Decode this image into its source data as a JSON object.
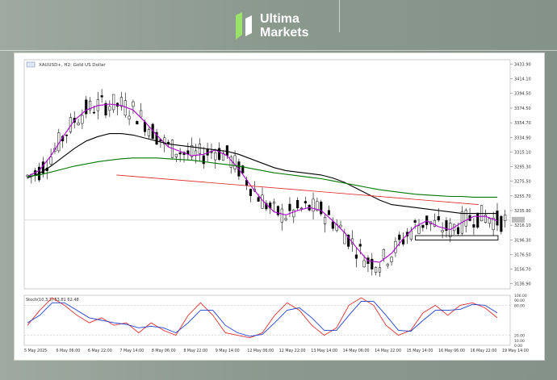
{
  "brand": {
    "line1": "Ultima",
    "line2": "Markets",
    "accent": "#9be26a"
  },
  "chart_data": [
    {
      "type": "line",
      "title": "XAUUSD+, H2: Gold US Dollar",
      "price_ticks": [
        "3433.90",
        "3414.10",
        "3394.50",
        "3374.50",
        "3354.70",
        "3334.90",
        "3315.10",
        "3295.30",
        "3275.50",
        "3255.70",
        "3235.90",
        "3216.10",
        "3196.30",
        "3176.50",
        "3156.70",
        "3136.90"
      ],
      "ylim": [
        3130,
        3440
      ],
      "current_price": 3223,
      "time_labels": [
        "5 May 2025",
        "6 May 06:00",
        "6 May 22:00",
        "7 May 14:00",
        "8 May 06:00",
        "8 May 22:00",
        "9 May 14:00",
        "12 May 06:00",
        "12 May 22:00",
        "13 May 14:00",
        "14 May 06:00",
        "14 May 22:00",
        "15 May 14:00",
        "16 May 06:00",
        "16 May 22:00",
        "19 May 14:00"
      ],
      "series": [
        {
          "color": "#aa00cc",
          "values": [
            3282,
            3290,
            3310,
            3335,
            3358,
            3372,
            3378,
            3380,
            3378,
            3372,
            3356,
            3338,
            3322,
            3316,
            3310,
            3312,
            3318,
            3310,
            3292,
            3270,
            3250,
            3234,
            3230,
            3236,
            3240,
            3236,
            3222,
            3206,
            3186,
            3168,
            3166,
            3178,
            3198,
            3214,
            3222,
            3214,
            3210,
            3220,
            3228,
            3228,
            3222
          ]
        },
        {
          "color": "#000000",
          "values": [
            3280,
            3286,
            3296,
            3308,
            3320,
            3330,
            3336,
            3340,
            3340,
            3338,
            3334,
            3330,
            3326,
            3324,
            3322,
            3320,
            3318,
            3316,
            3312,
            3306,
            3300,
            3294,
            3290,
            3288,
            3286,
            3284,
            3280,
            3274,
            3266,
            3258,
            3250,
            3244,
            3242,
            3240,
            3238,
            3236,
            3234,
            3232,
            3232,
            3232,
            3232
          ]
        },
        {
          "color": "#007700",
          "values": [
            3282,
            3284,
            3288,
            3292,
            3296,
            3299,
            3302,
            3304,
            3306,
            3307,
            3307,
            3307,
            3306,
            3305,
            3304,
            3302,
            3300,
            3298,
            3296,
            3293,
            3290,
            3287,
            3285,
            3283,
            3281,
            3279,
            3276,
            3273,
            3270,
            3267,
            3264,
            3262,
            3260,
            3258,
            3257,
            3256,
            3255,
            3255,
            3254,
            3254,
            3254
          ]
        }
      ],
      "trendline": {
        "color": "#e02020",
        "from": [
          0.19,
          3284
        ],
        "to": [
          0.935,
          3244
        ]
      },
      "box": {
        "from": [
          0.805,
          3202
        ],
        "to": [
          0.975,
          3196
        ]
      }
    },
    {
      "type": "line",
      "title": "Stoch(10,3,3) 53.81 62.48",
      "ticks": [
        "100.00",
        "90.00",
        "80.00",
        "20.00",
        "10.00",
        "0.00"
      ],
      "ylim": [
        0,
        100
      ],
      "series": [
        {
          "name": "main",
          "color": "#e03030",
          "values": [
            40,
            70,
            95,
            80,
            60,
            45,
            55,
            40,
            45,
            25,
            45,
            30,
            20,
            60,
            85,
            60,
            25,
            20,
            15,
            25,
            60,
            85,
            70,
            40,
            20,
            35,
            80,
            95,
            80,
            40,
            20,
            30,
            65,
            80,
            60,
            80,
            85,
            75,
            55
          ]
        },
        {
          "name": "signal",
          "color": "#2040cc",
          "values": [
            45,
            60,
            85,
            85,
            70,
            55,
            50,
            45,
            42,
            35,
            38,
            35,
            25,
            45,
            70,
            70,
            40,
            25,
            18,
            22,
            45,
            70,
            75,
            55,
            30,
            30,
            60,
            88,
            88,
            60,
            30,
            28,
            50,
            70,
            70,
            72,
            82,
            80,
            65
          ]
        }
      ]
    }
  ]
}
